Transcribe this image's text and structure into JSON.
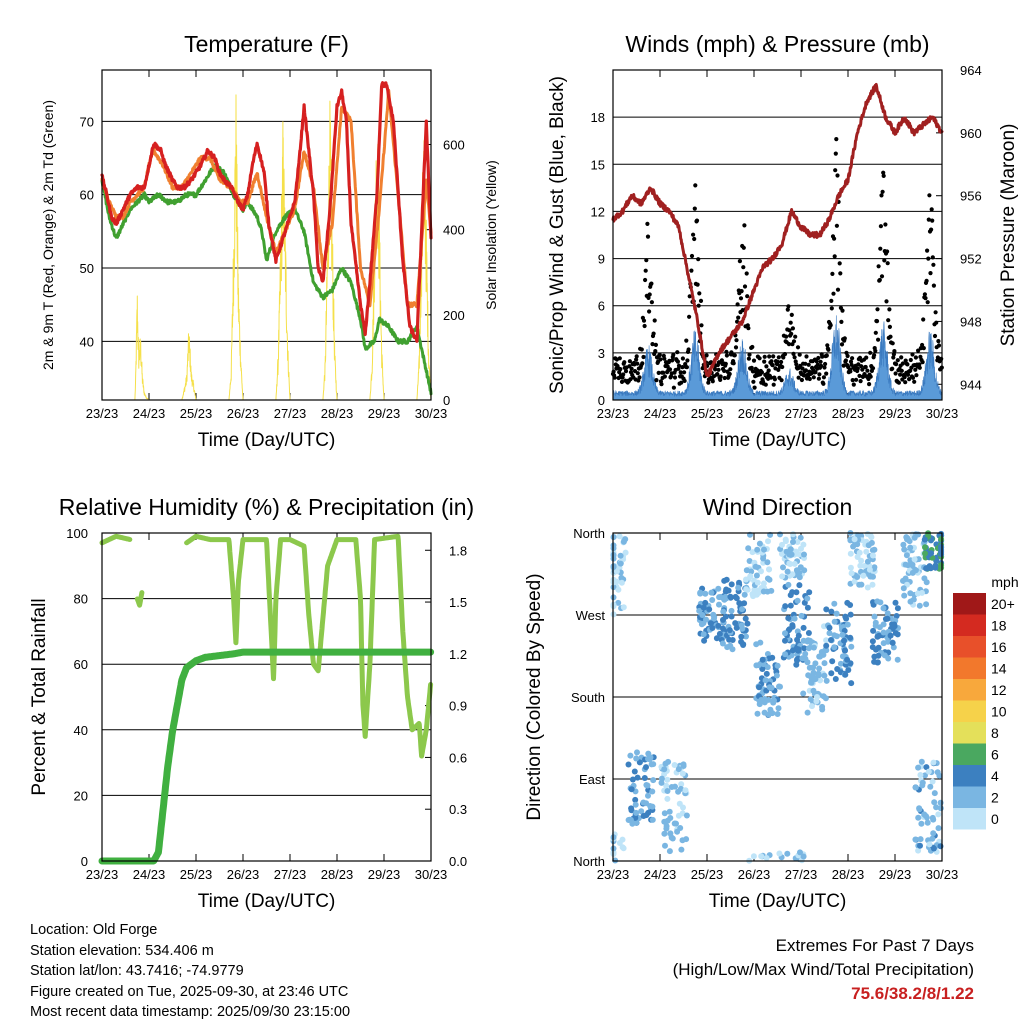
{
  "chart_data": [
    {
      "type": "line",
      "title": "Temperature (F)",
      "ylabel": "2m & 9m T (Red, Orange) & 2m Td (Green)",
      "ylabel_right": "Solar Insolation (Yellow)",
      "xlabel": "Time (Day/UTC)",
      "x_ticks": [
        "23/23",
        "24/23",
        "25/23",
        "26/23",
        "27/23",
        "28/23",
        "29/23",
        "30/23"
      ],
      "xlim": [
        0,
        7
      ],
      "ylim": [
        32,
        77
      ],
      "y_ticks": [
        40,
        50,
        60,
        70
      ],
      "ylim_right": [
        0,
        775
      ],
      "y_ticks_right": [
        0,
        200,
        400,
        600
      ],
      "series": [
        {
          "name": "2m T",
          "color": "#d62020",
          "x": [
            0,
            0.1,
            0.2,
            0.3,
            0.45,
            0.6,
            0.75,
            0.9,
            1.0,
            1.1,
            1.25,
            1.35,
            1.5,
            1.6,
            1.75,
            1.9,
            2.0,
            2.1,
            2.25,
            2.4,
            2.5,
            2.6,
            2.75,
            2.9,
            3.0,
            3.1,
            3.2,
            3.3,
            3.45,
            3.55,
            3.7,
            3.85,
            4.0,
            4.1,
            4.2,
            4.3,
            4.5,
            4.6,
            4.7,
            4.85,
            5.0,
            5.1,
            5.2,
            5.3,
            5.5,
            5.6,
            5.7,
            5.85,
            5.95,
            6.05,
            6.2,
            6.4,
            6.55,
            6.7,
            6.8,
            6.9,
            7.0
          ],
          "y": [
            62.5,
            60,
            57,
            56,
            58,
            60,
            61,
            61,
            64,
            67,
            66,
            64,
            62,
            61,
            61,
            62,
            63,
            64,
            66,
            65,
            63,
            62,
            61,
            59,
            58,
            60,
            64,
            67,
            63,
            56,
            51,
            54,
            57,
            59,
            65,
            72,
            60,
            50,
            48,
            58,
            72,
            74,
            70,
            56,
            45,
            41,
            48,
            60,
            75,
            75,
            70,
            51,
            42,
            40,
            55,
            70,
            54
          ]
        },
        {
          "name": "9m T",
          "color": "#f08030",
          "x": [
            0,
            0.15,
            0.3,
            0.45,
            0.6,
            0.75,
            0.9,
            1.0,
            1.1,
            1.3,
            1.5,
            1.7,
            1.9,
            2.1,
            2.3,
            2.5,
            2.75,
            2.95,
            3.1,
            3.3,
            3.5,
            3.7,
            3.9,
            4.1,
            4.3,
            4.5,
            4.7,
            4.9,
            5.1,
            5.3,
            5.5,
            5.7,
            5.9,
            6.1,
            6.3,
            6.5,
            6.7,
            6.9,
            7.0
          ],
          "y": [
            62,
            59,
            57,
            57,
            59,
            60,
            61,
            64,
            66,
            64,
            61,
            61,
            63,
            65,
            65,
            62,
            61,
            59,
            59,
            63,
            57,
            52,
            55,
            58,
            66,
            61,
            50,
            56,
            72,
            70,
            50,
            45,
            58,
            74,
            60,
            45,
            45,
            62,
            55
          ]
        },
        {
          "name": "2m Td",
          "color": "#40a030",
          "x": [
            0,
            0.15,
            0.3,
            0.45,
            0.6,
            0.75,
            0.9,
            1.0,
            1.2,
            1.4,
            1.6,
            1.8,
            2.0,
            2.2,
            2.4,
            2.6,
            2.8,
            3.0,
            3.1,
            3.3,
            3.4,
            3.5,
            3.7,
            3.9,
            4.1,
            4.3,
            4.5,
            4.7,
            4.9,
            5.1,
            5.3,
            5.5,
            5.6,
            5.8,
            5.9,
            6.1,
            6.3,
            6.5,
            6.7,
            6.9,
            7.0
          ],
          "y": [
            62,
            57,
            54,
            56,
            58,
            59,
            60,
            59,
            60,
            59,
            59,
            60,
            60,
            62,
            64,
            63,
            60,
            58,
            59,
            57,
            55,
            51,
            55,
            57,
            58,
            55,
            48,
            46,
            47,
            50,
            48,
            43,
            39,
            40,
            43,
            42,
            40,
            40,
            42,
            36,
            33
          ]
        },
        {
          "name": "Solar Insolation",
          "color": "#f5e04a",
          "axis": "right",
          "x": [
            0,
            0.7,
            0.72,
            0.75,
            0.78,
            0.82,
            0.86,
            0.9,
            0.95,
            1.0,
            1.7,
            1.75,
            1.8,
            1.85,
            1.9,
            1.95,
            2.0,
            2.7,
            2.75,
            2.8,
            2.85,
            2.9,
            2.95,
            3.0,
            3.7,
            3.75,
            3.8,
            3.85,
            3.9,
            3.95,
            4.0,
            4.7,
            4.75,
            4.8,
            4.85,
            4.9,
            4.95,
            5.0,
            5.7,
            5.75,
            5.8,
            5.85,
            5.9,
            5.95,
            6.0,
            6.7,
            6.75,
            6.8,
            6.85,
            6.9,
            6.95,
            7.0
          ],
          "y": [
            0,
            0,
            80,
            280,
            120,
            160,
            60,
            20,
            5,
            0,
            0,
            30,
            60,
            180,
            70,
            40,
            0,
            0,
            80,
            400,
            760,
            300,
            120,
            0,
            0,
            120,
            380,
            680,
            420,
            150,
            0,
            0,
            100,
            420,
            720,
            430,
            130,
            0,
            0,
            110,
            440,
            730,
            450,
            140,
            0,
            0,
            110,
            440,
            700,
            430,
            130,
            0
          ]
        }
      ]
    },
    {
      "type": "scatter",
      "title": "Winds (mph) & Pressure (mb)",
      "ylabel": "Sonic/Prop Wind & Gust (Blue, Black)",
      "ylabel_right": "Station Pressure (Maroon)",
      "xlabel": "Time (Day/UTC)",
      "x_ticks": [
        "23/23",
        "24/23",
        "25/23",
        "26/23",
        "27/23",
        "28/23",
        "29/23",
        "30/23"
      ],
      "xlim": [
        0,
        7
      ],
      "ylim": [
        0,
        21
      ],
      "y_ticks": [
        0,
        3,
        6,
        9,
        12,
        15,
        18
      ],
      "ylim_right": [
        943,
        964
      ],
      "y_ticks_right": [
        944,
        948,
        952,
        956,
        960,
        964
      ],
      "series": [
        {
          "name": "Station Pressure",
          "color": "#a02020",
          "axis": "right",
          "x": [
            0,
            0.2,
            0.4,
            0.6,
            0.8,
            1.0,
            1.2,
            1.4,
            1.6,
            1.8,
            2.0,
            2.1,
            2.25,
            2.5,
            2.75,
            3.0,
            3.2,
            3.4,
            3.6,
            3.8,
            4.0,
            4.2,
            4.4,
            4.6,
            4.8,
            5.0,
            5.2,
            5.4,
            5.6,
            5.8,
            6.0,
            6.2,
            6.4,
            6.6,
            6.8,
            7.0
          ],
          "y": [
            954.5,
            955,
            956,
            955.5,
            956.5,
            955.5,
            955,
            954,
            951,
            948,
            944.5,
            945,
            946,
            947,
            948,
            950,
            951.5,
            952,
            953,
            955,
            954,
            953.5,
            953.5,
            954.5,
            956,
            957,
            960,
            962,
            963,
            961,
            960,
            961,
            960,
            960.5,
            961,
            960
          ]
        },
        {
          "name": "Gust",
          "color": "#000000",
          "kind": "points"
        },
        {
          "name": "Sonic/Prop Wind",
          "color": "#4a90d0",
          "kind": "filled"
        }
      ]
    },
    {
      "type": "line",
      "title": "Relative Humidity (%) & Precipitation (in)",
      "ylabel": "Percent & Total Rainfall",
      "xlabel": "Time (Day/UTC)",
      "x_ticks": [
        "23/23",
        "24/23",
        "25/23",
        "26/23",
        "27/23",
        "28/23",
        "29/23",
        "30/23"
      ],
      "xlim": [
        0,
        7
      ],
      "ylim": [
        0,
        100
      ],
      "y_ticks": [
        0,
        20,
        40,
        60,
        80,
        100
      ],
      "ylim_right": [
        0,
        1.9
      ],
      "y_ticks_right": [
        "0.0",
        "0.3",
        "0.6",
        "0.9",
        "1.2",
        "1.5",
        "1.8"
      ],
      "series": [
        {
          "name": "Relative Humidity",
          "color": "#8cc84c",
          "x": [
            0,
            0.3,
            0.6,
            0.7,
            0.75,
            0.8,
            0.85,
            0.9,
            1.0,
            1.5,
            1.8,
            2.0,
            2.3,
            2.7,
            2.8,
            2.85,
            2.9,
            3.0,
            3.5,
            3.6,
            3.65,
            3.7,
            3.8,
            4.0,
            4.3,
            4.4,
            4.5,
            4.6,
            4.8,
            5.0,
            5.4,
            5.5,
            5.55,
            5.6,
            5.7,
            5.8,
            6.3,
            6.4,
            6.5,
            6.6,
            6.75,
            6.8,
            6.9,
            7.0
          ],
          "y": [
            97,
            99,
            98,
            null,
            80,
            78,
            82,
            null,
            null,
            null,
            97,
            99,
            98,
            98,
            80,
            66,
            85,
            98,
            98,
            70,
            55,
            80,
            98,
            98,
            96,
            75,
            60,
            58,
            90,
            98,
            98,
            80,
            48,
            38,
            60,
            98,
            99,
            70,
            50,
            40,
            42,
            32,
            40,
            55
          ]
        },
        {
          "name": "Total Precipitation",
          "color": "#40b040",
          "axis": "right",
          "x": [
            0,
            1.0,
            1.1,
            1.2,
            1.3,
            1.4,
            1.5,
            1.6,
            1.7,
            1.8,
            2.0,
            2.2,
            2.5,
            2.8,
            3.0,
            4.0,
            5.0,
            6.0,
            7.0
          ],
          "y": [
            0,
            0,
            0,
            0.05,
            0.3,
            0.55,
            0.75,
            0.9,
            1.05,
            1.12,
            1.16,
            1.18,
            1.19,
            1.2,
            1.21,
            1.21,
            1.21,
            1.21,
            1.21
          ]
        }
      ]
    },
    {
      "type": "scatter",
      "title": "Wind Direction",
      "ylabel": "Direction (Colored By Speed)",
      "xlabel": "Time (Day/UTC)",
      "x_ticks": [
        "23/23",
        "24/23",
        "25/23",
        "26/23",
        "27/23",
        "28/23",
        "29/23",
        "30/23"
      ],
      "xlim": [
        0,
        7
      ],
      "y_ticks": [
        "North",
        "East",
        "South",
        "West",
        "North"
      ],
      "colorbar": {
        "title": "mph",
        "labels": [
          "20+",
          "18",
          "16",
          "14",
          "12",
          "10",
          "8",
          "6",
          "4",
          "2",
          "0"
        ],
        "colors": [
          "#a01818",
          "#d42a20",
          "#e8502a",
          "#f2782c",
          "#f8a83c",
          "#f6d24a",
          "#e4e05a",
          "#4aa860",
          "#3c80c0",
          "#7ab6e2",
          "#bfe4f8"
        ]
      }
    }
  ],
  "info": {
    "location": "Location: Old Forge",
    "elevation": "Station elevation: 534.406 m",
    "latlon": "Station lat/lon: 43.7416; -74.9779",
    "created": "Figure created on Tue, 2025-09-30, at 23:46 UTC",
    "recent": "Most recent data timestamp: 2025/09/30 23:15:00"
  },
  "extremes": {
    "title": "Extremes For Past 7 Days",
    "subtitle": "(High/Low/Max Wind/Total Precipitation)",
    "values": "75.6/38.2/8/1.22",
    "value_color": "#c82020"
  }
}
